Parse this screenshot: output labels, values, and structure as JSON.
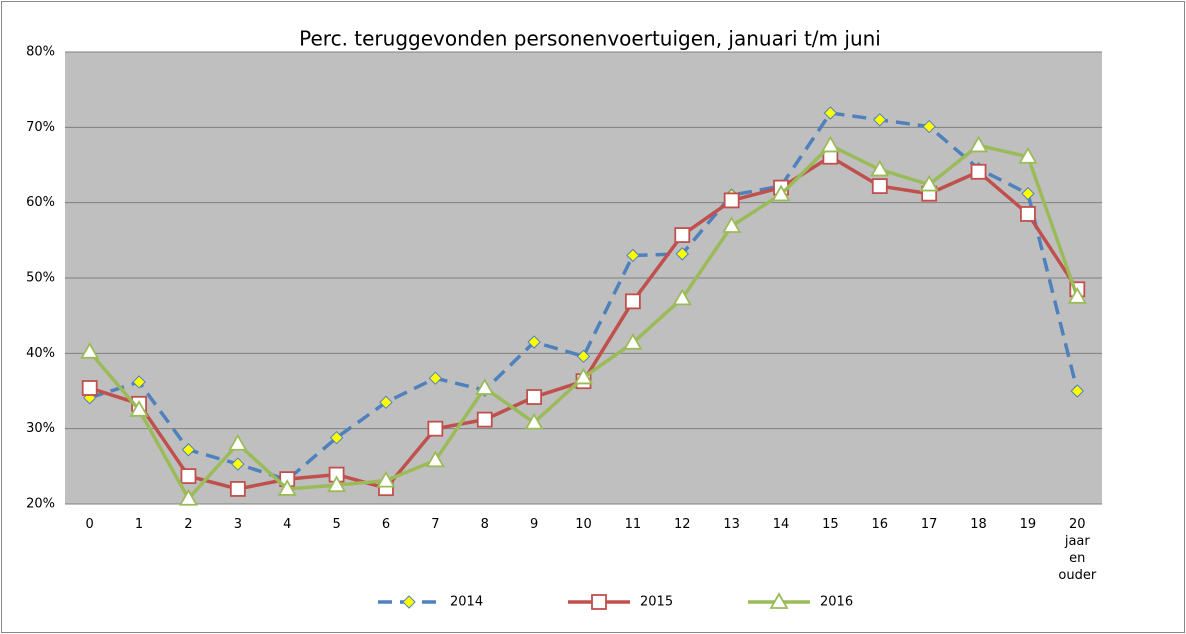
{
  "chart_data": {
    "type": "line",
    "title": "Perc. teruggevonden personenvoertuigen, januari t/m juni",
    "categories": [
      "0",
      "1",
      "2",
      "3",
      "4",
      "5",
      "6",
      "7",
      "8",
      "9",
      "10",
      "11",
      "12",
      "13",
      "14",
      "15",
      "16",
      "17",
      "18",
      "19",
      "20 jaar en ouder"
    ],
    "series": [
      {
        "name": "2014",
        "color": "#4f81bd",
        "dashed": true,
        "marker": "diamond",
        "marker_fill": "#ffff00",
        "values": [
          34.1,
          36.2,
          27.2,
          25.3,
          23.2,
          28.8,
          33.5,
          36.7,
          35.1,
          41.5,
          39.6,
          53.0,
          53.2,
          61.0,
          62.2,
          71.9,
          71.0,
          70.1,
          64.5,
          61.2,
          35.0
        ]
      },
      {
        "name": "2015",
        "color": "#c0504d",
        "dashed": false,
        "marker": "square",
        "marker_fill": "#ffffff",
        "values": [
          35.4,
          33.3,
          23.7,
          22.0,
          23.3,
          23.9,
          22.1,
          30.0,
          31.2,
          34.2,
          36.3,
          46.9,
          55.7,
          60.3,
          62.0,
          66.1,
          62.2,
          61.2,
          64.1,
          58.5,
          48.5
        ]
      },
      {
        "name": "2016",
        "color": "#9bbb59",
        "dashed": false,
        "marker": "triangle",
        "marker_fill": "#ffffff",
        "values": [
          40.2,
          32.5,
          20.7,
          28.0,
          22.0,
          22.5,
          23.1,
          25.8,
          35.4,
          30.8,
          36.8,
          41.4,
          47.3,
          56.9,
          61.1,
          67.6,
          64.4,
          62.4,
          67.6,
          66.1,
          47.5
        ]
      }
    ],
    "ylim": [
      20,
      80
    ],
    "yticks": [
      {
        "value": 20,
        "label": "20%"
      },
      {
        "value": 30,
        "label": "30%"
      },
      {
        "value": 40,
        "label": "40%"
      },
      {
        "value": 50,
        "label": "50%"
      },
      {
        "value": 60,
        "label": "60%"
      },
      {
        "value": 70,
        "label": "70%"
      },
      {
        "value": 80,
        "label": "80%"
      }
    ],
    "grid": true,
    "legend": "bottom"
  }
}
